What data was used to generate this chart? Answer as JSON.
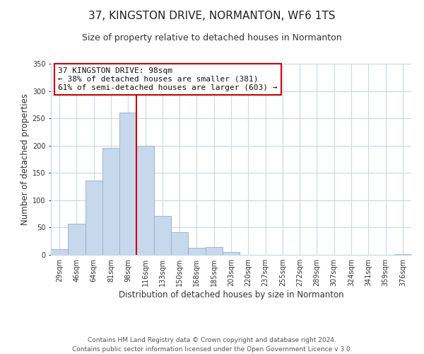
{
  "title": "37, KINGSTON DRIVE, NORMANTON, WF6 1TS",
  "subtitle": "Size of property relative to detached houses in Normanton",
  "xlabel": "Distribution of detached houses by size in Normanton",
  "ylabel": "Number of detached properties",
  "footer_line1": "Contains HM Land Registry data © Crown copyright and database right 2024.",
  "footer_line2": "Contains public sector information licensed under the Open Government Licence v 3.0.",
  "annotation_title": "37 KINGSTON DRIVE: 98sqm",
  "annotation_line1": "← 38% of detached houses are smaller (381)",
  "annotation_line2": "61% of semi-detached houses are larger (603) →",
  "bar_color": "#c8d8ec",
  "bar_edge_color": "#8ab0d0",
  "vline_color": "#cc0000",
  "annotation_box_edge": "#cc0000",
  "background_color": "#ffffff",
  "categories": [
    "29sqm",
    "46sqm",
    "64sqm",
    "81sqm",
    "98sqm",
    "116sqm",
    "133sqm",
    "150sqm",
    "168sqm",
    "185sqm",
    "203sqm",
    "220sqm",
    "237sqm",
    "255sqm",
    "272sqm",
    "289sqm",
    "307sqm",
    "324sqm",
    "341sqm",
    "359sqm",
    "376sqm"
  ],
  "values": [
    10,
    57,
    136,
    196,
    260,
    200,
    71,
    41,
    13,
    14,
    5,
    0,
    0,
    0,
    0,
    0,
    0,
    0,
    0,
    0,
    1
  ],
  "ylim": [
    0,
    350
  ],
  "yticks": [
    0,
    50,
    100,
    150,
    200,
    250,
    300,
    350
  ],
  "highlight_index": 4,
  "vline_x": 4.5,
  "grid_color": "#c8d8ec",
  "title_fontsize": 11,
  "subtitle_fontsize": 9,
  "axis_label_fontsize": 8.5,
  "tick_fontsize": 7,
  "annotation_fontsize": 8,
  "footer_fontsize": 6.5
}
